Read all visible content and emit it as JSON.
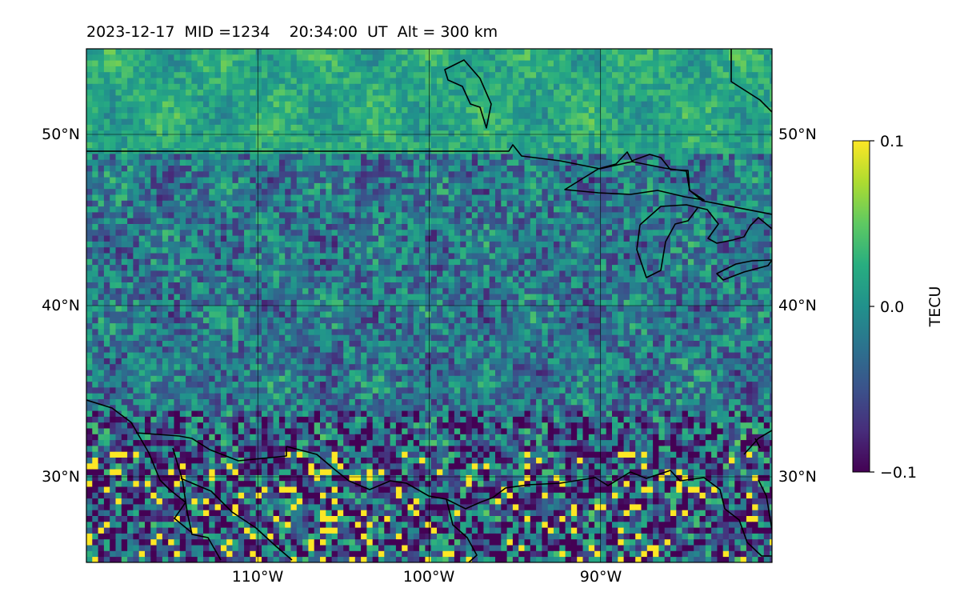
{
  "chart_data": {
    "type": "heatmap",
    "title": "2023-12-17  MID =1234    20:34:00  UT  Alt = 300 km",
    "projection": "map (North America, Great Lakes to Gulf of Mexico)",
    "x_extent_deg": [
      -120,
      -80
    ],
    "y_extent_deg": [
      25,
      55
    ],
    "x_ticks": [
      -110,
      -100,
      -90
    ],
    "x_tick_labels": [
      "110°W",
      "100°W",
      "90°W"
    ],
    "y_ticks": [
      30,
      40,
      50
    ],
    "y_tick_labels": [
      "30°N",
      "40°N",
      "50°N"
    ],
    "y_labels_both_sides": true,
    "grid": true,
    "coastlines_and_borders": true,
    "colormap": "viridis",
    "colorbar": {
      "label": "TECU",
      "range": [
        -0.1,
        0.1
      ],
      "ticks": [
        0.1,
        0.0,
        -0.1
      ],
      "tick_labels": [
        "0.1",
        "0.0",
        "−0.1"
      ],
      "position": "right"
    },
    "field_summary": {
      "north_region_mean": 0.02,
      "central_region_mean": -0.02,
      "south_region_mean": -0.04,
      "notes": "Smooth positive values north of ~50°N; noisy mixed values over the central US; strong positive and negative patches along the Gulf coast and northern Mexico."
    },
    "colors": {
      "viridis_min": "#440154",
      "viridis_mid": "#21918c",
      "viridis_max": "#fde725",
      "outline": "#000000"
    }
  }
}
